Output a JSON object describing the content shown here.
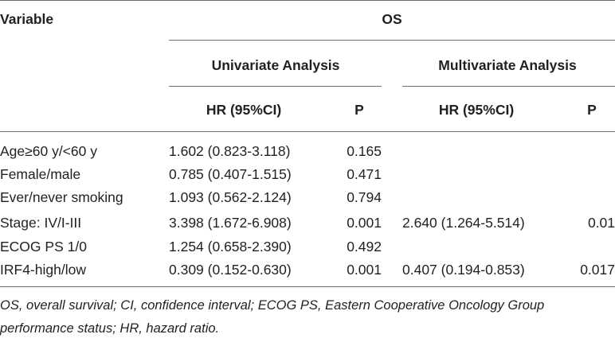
{
  "table": {
    "header": {
      "variable": "Variable",
      "os": "OS",
      "univariate": "Univariate Analysis",
      "multivariate": "Multivariate Analysis",
      "hr_uni": "HR (95%CI)",
      "p_uni": "P",
      "hr_multi": "HR (95%CI)",
      "p_multi": "P"
    },
    "rows": [
      {
        "variable": "Age≥60 y/<60 y",
        "hr_uni": "1.602 (0.823-3.118)",
        "p_uni": "0.165",
        "hr_multi": "",
        "p_multi": ""
      },
      {
        "variable": "Female/male",
        "hr_uni": "0.785 (0.407-1.515)",
        "p_uni": "0.471",
        "hr_multi": "",
        "p_multi": ""
      },
      {
        "variable": "Ever/never smoking",
        "hr_uni": "1.093 (0.562-2.124)",
        "p_uni": "0.794",
        "hr_multi": "",
        "p_multi": ""
      },
      {
        "variable": "Stage: IV/I-III",
        "hr_uni": "3.398 (1.672-6.908)",
        "p_uni": "0.001",
        "hr_multi": "2.640 (1.264-5.514)",
        "p_multi": "0.01"
      },
      {
        "variable": "ECOG PS 1/0",
        "hr_uni": "1.254 (0.658-2.390)",
        "p_uni": "0.492",
        "hr_multi": "",
        "p_multi": ""
      },
      {
        "variable": "IRF4-high/low",
        "hr_uni": "0.309 (0.152-0.630)",
        "p_uni": "0.001",
        "hr_multi": "0.407 (0.194-0.853)",
        "p_multi": "0.017"
      }
    ],
    "footnote": "OS, overall survival; CI, confidence interval; ECOG PS, Eastern Cooperative Oncology Group performance status; HR, hazard ratio."
  }
}
